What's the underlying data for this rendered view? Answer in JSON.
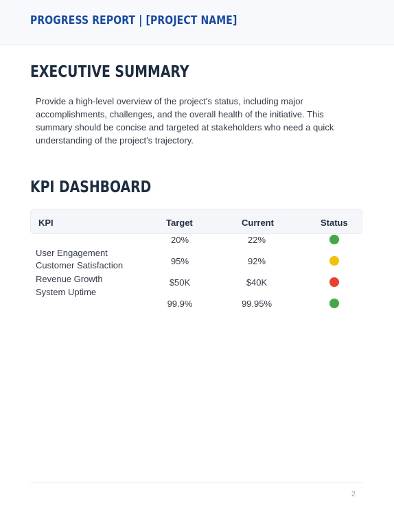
{
  "header": {
    "title": "PROGRESS REPORT | [PROJECT NAME]"
  },
  "executive_summary": {
    "title": "EXECUTIVE SUMMARY",
    "text": "Provide a high-level overview of the project's status, including major accomplishments, challenges, and the overall health of the initiative. This summary should be concise and targeted at stakeholders who need a quick understanding of the project's trajectory."
  },
  "kpi_dashboard": {
    "title": "KPI DASHBOARD",
    "columns": [
      "KPI",
      "Target",
      "Current",
      "Status"
    ],
    "kpi_labels": [
      "User Engagement",
      "Customer Satisfaction",
      "Revenue Growth",
      "System Uptime"
    ],
    "rows": [
      {
        "target": "20%",
        "current": "22%",
        "status": "green"
      },
      {
        "target": "95%",
        "current": "92%",
        "status": "yellow"
      },
      {
        "target": "$50K",
        "current": "$40K",
        "status": "red"
      },
      {
        "target": "99.9%",
        "current": "99.95%",
        "status": "green"
      }
    ],
    "status_colors": {
      "green": "#43a845",
      "yellow": "#f4bf0b",
      "red": "#e8402f"
    }
  },
  "footer": {
    "page_number": "2"
  }
}
